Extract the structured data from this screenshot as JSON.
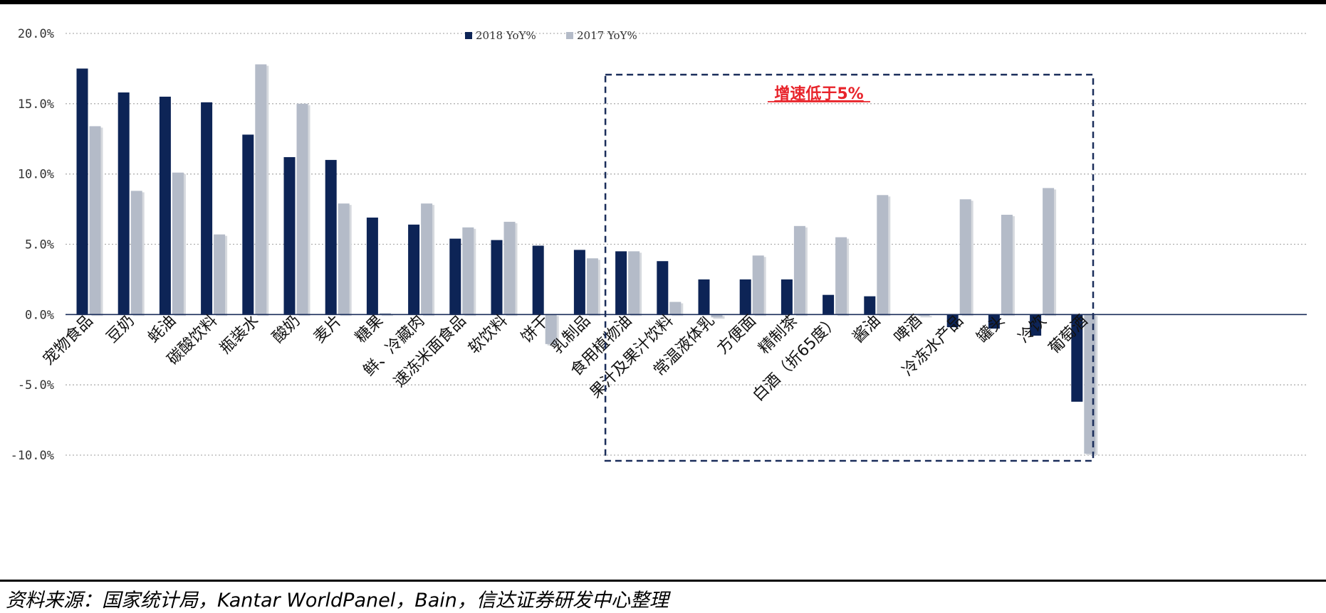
{
  "chart_data": {
    "type": "bar",
    "categories": [
      "宠物食品",
      "豆奶",
      "蚝油",
      "碳酸饮料",
      "瓶装水",
      "酸奶",
      "麦片",
      "糖果",
      "鲜、冷藏肉",
      "速冻米面食品",
      "软饮料",
      "饼干",
      "乳制品",
      "食用植物油",
      "果汁及果汁饮料",
      "常温液体乳",
      "方便面",
      "精制茶",
      "白酒（折65度）",
      "酱油",
      "啤酒",
      "冷冻水产品",
      "罐头",
      "冷饮",
      "葡萄酒"
    ],
    "series": [
      {
        "name": "2018 YoY%",
        "color": "#0d2456",
        "values": [
          17.5,
          15.8,
          15.5,
          15.1,
          12.8,
          11.2,
          11.0,
          6.9,
          6.4,
          5.4,
          5.3,
          4.9,
          4.6,
          4.5,
          3.8,
          2.5,
          2.5,
          2.5,
          1.4,
          1.3,
          0.0,
          -0.9,
          -1.0,
          -1.5,
          -6.2
        ]
      },
      {
        "name": "2017 YoY%",
        "color": "#b4bbc8",
        "values": [
          13.4,
          8.8,
          10.1,
          5.7,
          17.8,
          15.0,
          7.9,
          0.1,
          7.9,
          6.2,
          6.6,
          -2.1,
          4.0,
          4.5,
          0.9,
          -0.2,
          4.2,
          6.3,
          5.5,
          8.5,
          -0.1,
          8.2,
          7.1,
          9.0,
          -9.9
        ]
      }
    ],
    "ylim": [
      -10,
      20
    ],
    "yticks": [
      20,
      15,
      10,
      5,
      0,
      -5,
      -10
    ],
    "ytick_labels": [
      "20.0%",
      "15.0%",
      "10.0%",
      "5.0%",
      "0.0%",
      "-5.0%",
      "-10.0%"
    ],
    "grid": true,
    "legend_position": "top-center",
    "annotation": {
      "text": "增速低于5%",
      "color": "#e8242b",
      "from_category": 13
    }
  },
  "footer": {
    "source": "资料来源：国家统计局，Kantar WorldPanel，Bain，信达证券研发中心整理"
  }
}
